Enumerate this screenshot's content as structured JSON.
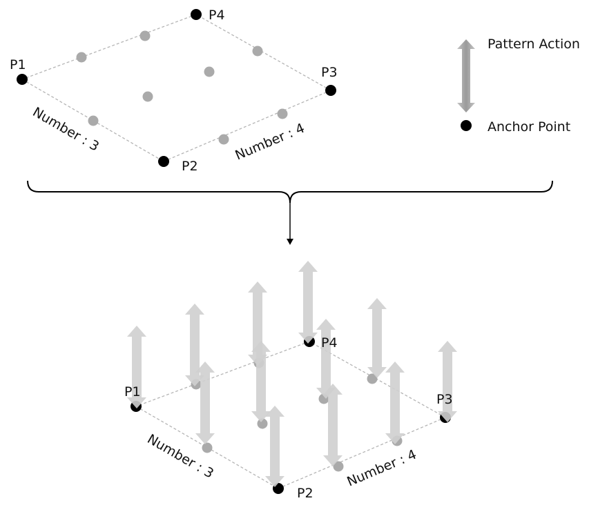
{
  "legend": {
    "pattern_action": "Pattern Action",
    "anchor_point": "Anchor Point"
  },
  "labels": {
    "p1": "P1",
    "p2": "P2",
    "p3": "P3",
    "p4": "P4",
    "number_a": "Number : 3",
    "number_b": "Number : 4"
  },
  "colors": {
    "anchor": "#000000",
    "pattern_point": "#aaaaaa",
    "dashed_line": "#b0b0b0",
    "arrow_fill": "#cfcfcf",
    "legend_arrow": "#a6a6a6",
    "bracket": "#000000"
  },
  "grid": {
    "number_side_p1_p2": 3,
    "number_side_p2_p3": 4
  }
}
